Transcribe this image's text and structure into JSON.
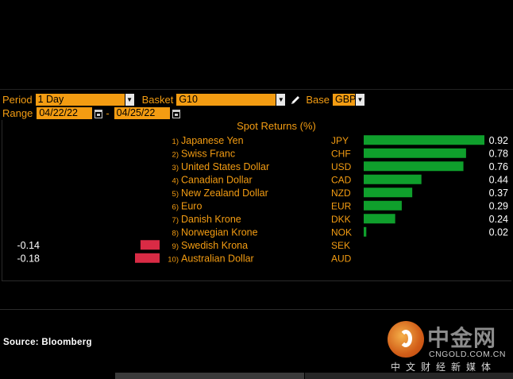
{
  "toolbar": {
    "period_label": "Period",
    "period_value": "1 Day",
    "basket_label": "Basket",
    "basket_value": "G10",
    "base_label": "Base",
    "base_value": "GBP",
    "range_label": "Range",
    "range_start": "04/22/22",
    "range_sep": "-",
    "range_end": "04/25/22"
  },
  "colors": {
    "positive": "#0f9f2c",
    "negative": "#d92b45",
    "accent": "#f39c12"
  },
  "chart_data": {
    "type": "bar",
    "title": "Spot Returns (%)",
    "rows": [
      {
        "rank": "1)",
        "name": "Japanese Yen",
        "code": "JPY",
        "value": 0.92,
        "label": "0.92"
      },
      {
        "rank": "2)",
        "name": "Swiss Franc",
        "code": "CHF",
        "value": 0.78,
        "label": "0.78"
      },
      {
        "rank": "3)",
        "name": "United States Dollar",
        "code": "USD",
        "value": 0.76,
        "label": "0.76"
      },
      {
        "rank": "4)",
        "name": "Canadian Dollar",
        "code": "CAD",
        "value": 0.44,
        "label": "0.44"
      },
      {
        "rank": "5)",
        "name": "New Zealand Dollar",
        "code": "NZD",
        "value": 0.37,
        "label": "0.37"
      },
      {
        "rank": "6)",
        "name": "Euro",
        "code": "EUR",
        "value": 0.29,
        "label": "0.29"
      },
      {
        "rank": "7)",
        "name": "Danish Krone",
        "code": "DKK",
        "value": 0.24,
        "label": "0.24"
      },
      {
        "rank": "8)",
        "name": "Norwegian Krone",
        "code": "NOK",
        "value": 0.02,
        "label": "0.02"
      },
      {
        "rank": "9)",
        "name": "Swedish Krona",
        "code": "SEK",
        "value": -0.14,
        "label": "-0.14"
      },
      {
        "rank": "10)",
        "name": "Australian Dollar",
        "code": "AUD",
        "value": -0.18,
        "label": "-0.18"
      }
    ]
  },
  "source": "Source: Bloomberg",
  "watermark": {
    "title": "中金网",
    "url": "CNGOLD.COM.CN",
    "subtitle": "中文财经新媒体"
  }
}
